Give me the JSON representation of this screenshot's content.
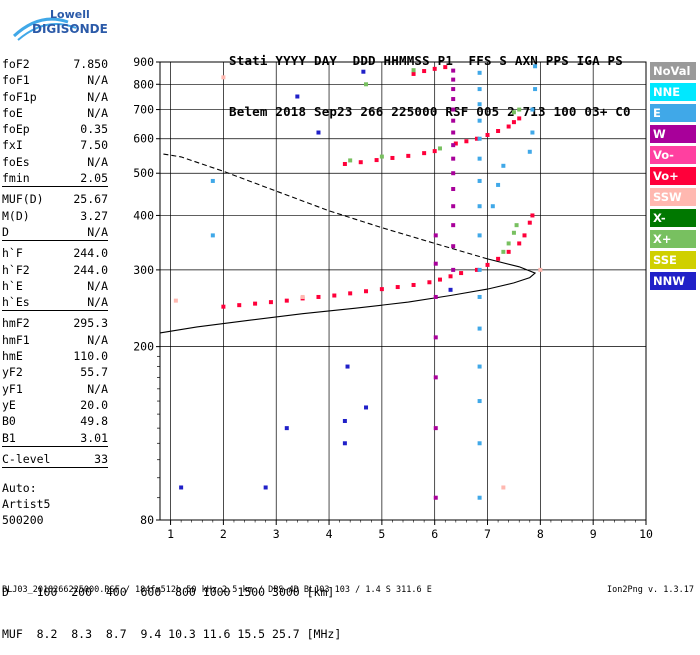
{
  "logo": {
    "line1": "Lowell",
    "line2": "DIGISONDE"
  },
  "header": {
    "labels": "Stati YYYY DAY  DDD HHMMSS P1  FFS S AXN PPS IGA PS",
    "values": "Belem 2018 Sep23 266 225000 RSF 005 2 713 100 03+ C0"
  },
  "params": [
    {
      "name": "foF2",
      "value": "7.850"
    },
    {
      "name": "foF1",
      "value": "N/A"
    },
    {
      "name": "foF1p",
      "value": "N/A"
    },
    {
      "name": "foE",
      "value": "N/A"
    },
    {
      "name": "foEp",
      "value": "0.35"
    },
    {
      "name": "fxI",
      "value": "7.50"
    },
    {
      "name": "foEs",
      "value": "N/A"
    },
    {
      "name": "fmin",
      "value": "2.05"
    },
    {
      "sep": true
    },
    {
      "name": "MUF(D)",
      "value": "25.67"
    },
    {
      "name": "M(D)",
      "value": "3.27"
    },
    {
      "name": "D",
      "value": "N/A"
    },
    {
      "sep": true
    },
    {
      "name": "h`F",
      "value": "244.0"
    },
    {
      "name": "h`F2",
      "value": "244.0"
    },
    {
      "name": "h`E",
      "value": "N/A"
    },
    {
      "name": "h`Es",
      "value": "N/A"
    },
    {
      "sep": true
    },
    {
      "name": "hmF2",
      "value": "295.3"
    },
    {
      "name": "hmF1",
      "value": "N/A"
    },
    {
      "name": "hmE",
      "value": "110.0"
    },
    {
      "name": "yF2",
      "value": "55.7"
    },
    {
      "name": "yF1",
      "value": "N/A"
    },
    {
      "name": "yE",
      "value": "20.0"
    },
    {
      "name": "B0",
      "value": "49.8"
    },
    {
      "name": "B1",
      "value": "3.01"
    },
    {
      "sep": true
    },
    {
      "name": "C-level",
      "value": "33"
    },
    {
      "sep": true
    }
  ],
  "auto": {
    "line1": "Auto:",
    "line2": "Artist5",
    "line3": "500200"
  },
  "legend": [
    {
      "label": "NoVal",
      "color": "#9a9a9a"
    },
    {
      "label": "NNE",
      "color": "#00e8ff"
    },
    {
      "label": "E",
      "color": "#40a8e8"
    },
    {
      "label": "W",
      "color": "#a8009a"
    },
    {
      "label": "Vo-",
      "color": "#ff40a0"
    },
    {
      "label": "Vo+",
      "color": "#ff003a"
    },
    {
      "label": "SSW",
      "color": "#ffb8b0"
    },
    {
      "label": "X-",
      "color": "#007800"
    },
    {
      "label": "X+",
      "color": "#78c060"
    },
    {
      "label": "SSE",
      "color": "#d0d000"
    },
    {
      "label": "NNW",
      "color": "#2020c8"
    }
  ],
  "dmuf": {
    "d_row": "D    100  200  400  600  800 1000 1500 3000 [km]",
    "muf_row": "MUF  8.2  8.3  8.7  9.4 10.3 11.6 15.5 25.7 [MHz]"
  },
  "footer": "BLJ03_2018266225000.RSF / 184fx512h 50 kHz 2.5 km / DPS-4D BLJ03 103 / 1.4 S 311.6 E",
  "version": "Ion2Png v. 1.3.17",
  "chart_data": {
    "type": "scatter",
    "title": "",
    "xlabel": "",
    "ylabel": "",
    "xlim": [
      0.8,
      10
    ],
    "ylim": [
      80,
      900
    ],
    "yscale": "log",
    "x_ticks": [
      1,
      2,
      3,
      4,
      5,
      6,
      7,
      8,
      9,
      10
    ],
    "y_ticks": [
      80,
      200,
      300,
      400,
      500,
      600,
      700,
      800,
      900
    ],
    "grid": true,
    "series": [
      {
        "name": "Vo+",
        "color": "#ff003a",
        "points": [
          [
            2.0,
            247
          ],
          [
            2.3,
            249
          ],
          [
            2.6,
            251
          ],
          [
            2.9,
            253
          ],
          [
            3.2,
            255
          ],
          [
            3.5,
            258
          ],
          [
            3.8,
            260
          ],
          [
            4.1,
            262
          ],
          [
            4.4,
            265
          ],
          [
            4.7,
            268
          ],
          [
            5.0,
            271
          ],
          [
            5.3,
            274
          ],
          [
            5.6,
            277
          ],
          [
            5.9,
            281
          ],
          [
            6.1,
            285
          ],
          [
            6.3,
            290
          ],
          [
            6.5,
            295
          ],
          [
            6.8,
            300
          ],
          [
            7.0,
            308
          ],
          [
            7.2,
            318
          ],
          [
            7.4,
            330
          ],
          [
            7.6,
            345
          ],
          [
            7.7,
            360
          ],
          [
            7.8,
            385
          ],
          [
            7.85,
            400
          ],
          [
            4.3,
            525
          ],
          [
            4.6,
            530
          ],
          [
            4.9,
            536
          ],
          [
            5.2,
            542
          ],
          [
            5.5,
            548
          ],
          [
            5.8,
            556
          ],
          [
            6.0,
            562
          ],
          [
            6.4,
            585
          ],
          [
            6.6,
            592
          ],
          [
            6.8,
            600
          ],
          [
            7.0,
            612
          ],
          [
            7.2,
            625
          ],
          [
            7.4,
            640
          ],
          [
            7.5,
            655
          ],
          [
            7.6,
            668
          ],
          [
            5.6,
            845
          ],
          [
            5.8,
            858
          ],
          [
            6.0,
            868
          ],
          [
            6.2,
            876
          ]
        ]
      },
      {
        "name": "W",
        "color": "#a8009a",
        "points": [
          [
            6.35,
            300
          ],
          [
            6.35,
            340
          ],
          [
            6.35,
            380
          ],
          [
            6.35,
            420
          ],
          [
            6.35,
            460
          ],
          [
            6.35,
            500
          ],
          [
            6.35,
            540
          ],
          [
            6.35,
            580
          ],
          [
            6.35,
            620
          ],
          [
            6.35,
            660
          ],
          [
            6.35,
            700
          ],
          [
            6.35,
            740
          ],
          [
            6.35,
            780
          ],
          [
            6.35,
            820
          ],
          [
            6.35,
            860
          ],
          [
            6.02,
            90
          ],
          [
            6.02,
            130
          ],
          [
            6.02,
            170
          ],
          [
            6.02,
            210
          ],
          [
            6.02,
            260
          ],
          [
            6.02,
            310
          ],
          [
            6.02,
            360
          ]
        ]
      },
      {
        "name": "E",
        "color": "#40a8e8",
        "points": [
          [
            6.85,
            90
          ],
          [
            6.85,
            120
          ],
          [
            6.85,
            150
          ],
          [
            6.85,
            180
          ],
          [
            6.85,
            220
          ],
          [
            6.85,
            260
          ],
          [
            6.85,
            300
          ],
          [
            6.85,
            360
          ],
          [
            6.85,
            420
          ],
          [
            6.85,
            480
          ],
          [
            6.85,
            540
          ],
          [
            6.85,
            600
          ],
          [
            6.85,
            660
          ],
          [
            6.85,
            720
          ],
          [
            6.85,
            780
          ],
          [
            6.85,
            850
          ],
          [
            7.1,
            420
          ],
          [
            7.2,
            470
          ],
          [
            7.3,
            520
          ],
          [
            7.8,
            560
          ],
          [
            7.85,
            620
          ],
          [
            7.85,
            700
          ],
          [
            7.9,
            780
          ],
          [
            7.9,
            880
          ],
          [
            1.8,
            480
          ],
          [
            1.8,
            360
          ]
        ]
      },
      {
        "name": "X+",
        "color": "#78c060",
        "points": [
          [
            4.4,
            535
          ],
          [
            5.0,
            546
          ],
          [
            6.1,
            570
          ],
          [
            7.3,
            330
          ],
          [
            7.4,
            345
          ],
          [
            7.5,
            365
          ],
          [
            7.55,
            380
          ],
          [
            7.6,
            700
          ],
          [
            7.5,
            690
          ],
          [
            4.7,
            800
          ],
          [
            5.6,
            862
          ]
        ]
      },
      {
        "name": "NNW",
        "color": "#2020c8",
        "points": [
          [
            4.3,
            120
          ],
          [
            4.3,
            135
          ],
          [
            3.2,
            130
          ],
          [
            2.8,
            95
          ],
          [
            4.7,
            145
          ],
          [
            4.65,
            855
          ],
          [
            4.35,
            180
          ],
          [
            3.4,
            750
          ],
          [
            3.8,
            620
          ],
          [
            1.2,
            95
          ],
          [
            6.3,
            270
          ]
        ]
      },
      {
        "name": "SSW",
        "color": "#ffb8b0",
        "points": [
          [
            1.1,
            255
          ],
          [
            2.0,
            830
          ],
          [
            3.5,
            260
          ],
          [
            7.3,
            95
          ],
          [
            8.0,
            300
          ]
        ]
      }
    ],
    "model_curves": [
      {
        "name": "profile",
        "style": "solid",
        "points": [
          [
            0.8,
            215
          ],
          [
            1.5,
            222
          ],
          [
            2.5,
            230
          ],
          [
            3.5,
            238
          ],
          [
            4.5,
            245
          ],
          [
            5.5,
            253
          ],
          [
            6.3,
            262
          ],
          [
            7.0,
            271
          ],
          [
            7.5,
            280
          ],
          [
            7.8,
            288
          ],
          [
            7.9,
            295
          ],
          [
            7.6,
            305
          ],
          [
            7.0,
            318
          ]
        ]
      },
      {
        "name": "profile-extension",
        "style": "dashed",
        "points": [
          [
            7.0,
            318
          ],
          [
            6.0,
            345
          ],
          [
            5.0,
            375
          ],
          [
            4.0,
            410
          ],
          [
            3.0,
            455
          ],
          [
            2.0,
            505
          ],
          [
            1.2,
            545
          ],
          [
            0.8,
            555
          ]
        ]
      }
    ]
  }
}
